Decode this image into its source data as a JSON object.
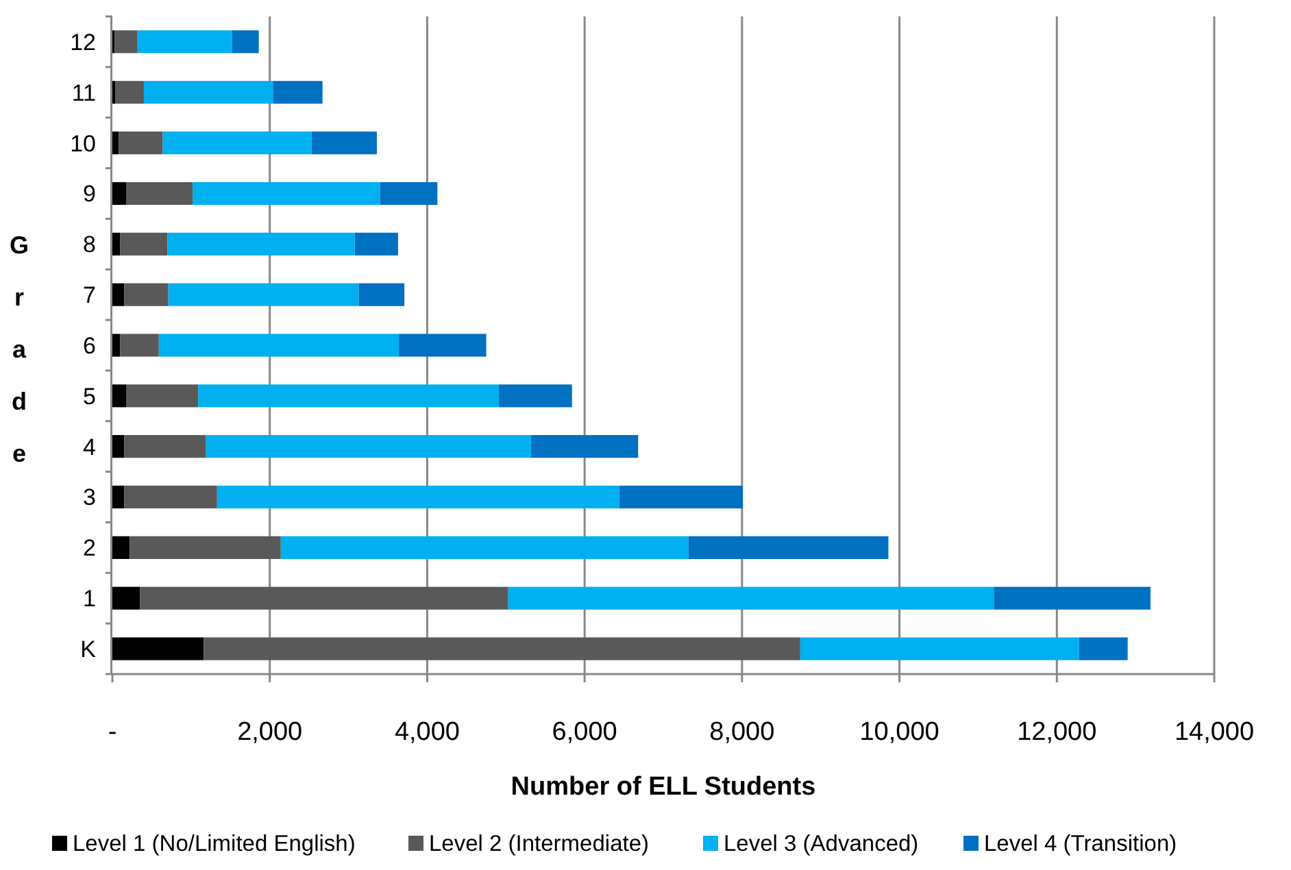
{
  "chart_data": {
    "type": "bar",
    "orientation": "horizontal",
    "stacked": true,
    "xlabel": "Number of ELL Students",
    "ylabel": "Grade",
    "categories": [
      "12",
      "11",
      "10",
      "9",
      "8",
      "7",
      "6",
      "5",
      "4",
      "3",
      "2",
      "1",
      "K"
    ],
    "series": [
      {
        "name": "Level 1 (No/Limited English)",
        "color": "#000000",
        "values": [
          30,
          40,
          80,
          180,
          100,
          150,
          100,
          180,
          150,
          150,
          220,
          350,
          1160
        ]
      },
      {
        "name": "Level 2 (Intermediate)",
        "color": "#595959",
        "values": [
          290,
          360,
          560,
          840,
          600,
          560,
          490,
          910,
          1040,
          1180,
          1920,
          4680,
          7580
        ]
      },
      {
        "name": "Level 3 (Advanced)",
        "color": "#00b0f0",
        "values": [
          1200,
          1640,
          1890,
          2380,
          2380,
          2420,
          3050,
          3820,
          4130,
          5110,
          5180,
          6170,
          3540
        ]
      },
      {
        "name": "Level 4 (Transition)",
        "color": "#0070c0",
        "values": [
          340,
          630,
          830,
          730,
          550,
          580,
          1110,
          930,
          1360,
          1570,
          2540,
          1990,
          620
        ]
      }
    ],
    "xlim": [
      0,
      14000
    ],
    "xticks": [
      {
        "value": 0,
        "label": "-"
      },
      {
        "value": 2000,
        "label": "2,000"
      },
      {
        "value": 4000,
        "label": "4,000"
      },
      {
        "value": 6000,
        "label": "6,000"
      },
      {
        "value": 8000,
        "label": "8,000"
      },
      {
        "value": 10000,
        "label": "10,000"
      },
      {
        "value": 12000,
        "label": "12,000"
      },
      {
        "value": 14000,
        "label": "14,000"
      }
    ],
    "grid": "x",
    "legend": "bottom"
  }
}
